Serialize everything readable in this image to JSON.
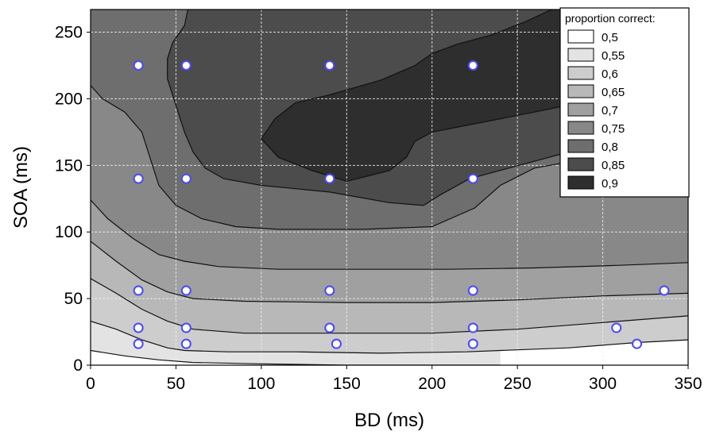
{
  "chart_data": {
    "type": "contour",
    "xlabel": "BD (ms)",
    "ylabel": "SOA (ms)",
    "xlim": [
      0,
      350
    ],
    "ylim": [
      0,
      267
    ],
    "x_ticks": [
      0,
      50,
      100,
      150,
      200,
      250,
      300,
      350
    ],
    "y_ticks": [
      0,
      50,
      100,
      150,
      200,
      250
    ],
    "grid": true,
    "legend": {
      "title": "proportion correct:",
      "position": "top-right",
      "entries": [
        {
          "label": "0,5",
          "color": "#ffffff"
        },
        {
          "label": "0,55",
          "color": "#e3e3e3"
        },
        {
          "label": "0,6",
          "color": "#cdcdcd"
        },
        {
          "label": "0,65",
          "color": "#b8b8b8"
        },
        {
          "label": "0,7",
          "color": "#a0a0a0"
        },
        {
          "label": "0,75",
          "color": "#888888"
        },
        {
          "label": "0,8",
          "color": "#6e6e6e"
        },
        {
          "label": "0,85",
          "color": "#4c4c4c"
        },
        {
          "label": "0,9",
          "color": "#2e2e2e"
        }
      ]
    },
    "contours": [
      {
        "level": 0.55,
        "points": [
          [
            0,
            11
          ],
          [
            20,
            7
          ],
          [
            40,
            4
          ],
          [
            60,
            2
          ],
          [
            100,
            1
          ],
          [
            150,
            0
          ],
          [
            200,
            0
          ],
          [
            240,
            0
          ]
        ]
      },
      {
        "level": 0.6,
        "points": [
          [
            0,
            33
          ],
          [
            15,
            27
          ],
          [
            30,
            19
          ],
          [
            45,
            13
          ],
          [
            55,
            11
          ],
          [
            80,
            10
          ],
          [
            120,
            10
          ],
          [
            170,
            9
          ],
          [
            220,
            10
          ],
          [
            280,
            13
          ],
          [
            320,
            17
          ],
          [
            350,
            19
          ]
        ]
      },
      {
        "level": 0.65,
        "points": [
          [
            0,
            65
          ],
          [
            15,
            54
          ],
          [
            30,
            42
          ],
          [
            45,
            33
          ],
          [
            60,
            27
          ],
          [
            90,
            24
          ],
          [
            150,
            24
          ],
          [
            200,
            24
          ],
          [
            250,
            27
          ],
          [
            300,
            32
          ],
          [
            350,
            37
          ]
        ]
      },
      {
        "level": 0.7,
        "points": [
          [
            0,
            93
          ],
          [
            15,
            78
          ],
          [
            30,
            64
          ],
          [
            45,
            55
          ],
          [
            60,
            50
          ],
          [
            90,
            48
          ],
          [
            150,
            47
          ],
          [
            200,
            47
          ],
          [
            250,
            49
          ],
          [
            300,
            52
          ],
          [
            350,
            54
          ]
        ]
      },
      {
        "level": 0.75,
        "points": [
          [
            0,
            124
          ],
          [
            10,
            110
          ],
          [
            25,
            95
          ],
          [
            40,
            83
          ],
          [
            55,
            78
          ],
          [
            75,
            74
          ],
          [
            110,
            72
          ],
          [
            160,
            72
          ],
          [
            210,
            72
          ],
          [
            260,
            73
          ],
          [
            310,
            75
          ],
          [
            350,
            77
          ]
        ]
      },
      {
        "level": 0.8,
        "points": [
          [
            0,
            210
          ],
          [
            7,
            200
          ],
          [
            20,
            190
          ],
          [
            30,
            175
          ],
          [
            35,
            155
          ],
          [
            40,
            135
          ],
          [
            50,
            120
          ],
          [
            65,
            110
          ],
          [
            85,
            104
          ],
          [
            110,
            102
          ],
          [
            160,
            102
          ],
          [
            200,
            104
          ],
          [
            225,
            118
          ],
          [
            240,
            135
          ],
          [
            260,
            148
          ],
          [
            300,
            157
          ],
          [
            350,
            163
          ]
        ]
      },
      {
        "level": 0.85,
        "points": [
          [
            57,
            267
          ],
          [
            55,
            255
          ],
          [
            48,
            242
          ],
          [
            45,
            230
          ],
          [
            45,
            215
          ],
          [
            50,
            195
          ],
          [
            55,
            175
          ],
          [
            60,
            160
          ],
          [
            67,
            148
          ],
          [
            78,
            140
          ],
          [
            100,
            135
          ],
          [
            140,
            130
          ],
          [
            175,
            122
          ],
          [
            195,
            120
          ],
          [
            205,
            128
          ],
          [
            222,
            140
          ],
          [
            245,
            148
          ],
          [
            280,
            160
          ],
          [
            320,
            170
          ],
          [
            350,
            175
          ]
        ]
      },
      {
        "level": 0.9,
        "points": [
          [
            100,
            170
          ],
          [
            108,
            185
          ],
          [
            120,
            197
          ],
          [
            140,
            203
          ],
          [
            170,
            214
          ],
          [
            190,
            225
          ],
          [
            200,
            234
          ],
          [
            215,
            241
          ],
          [
            235,
            248
          ],
          [
            255,
            258
          ],
          [
            270,
            267
          ]
        ]
      }
    ],
    "contour_tail_09": [
      [
        100,
        170
      ],
      [
        110,
        156
      ],
      [
        130,
        146
      ],
      [
        150,
        138
      ],
      [
        175,
        146
      ],
      [
        185,
        156
      ],
      [
        190,
        168
      ],
      [
        200,
        175
      ],
      [
        220,
        180
      ],
      [
        240,
        185
      ],
      [
        260,
        190
      ],
      [
        275,
        194
      ]
    ],
    "data_points": [
      {
        "x": 28,
        "y": 225
      },
      {
        "x": 56,
        "y": 225
      },
      {
        "x": 140,
        "y": 225
      },
      {
        "x": 224,
        "y": 225
      },
      {
        "x": 28,
        "y": 140
      },
      {
        "x": 56,
        "y": 140
      },
      {
        "x": 140,
        "y": 140
      },
      {
        "x": 224,
        "y": 140
      },
      {
        "x": 28,
        "y": 56
      },
      {
        "x": 56,
        "y": 56
      },
      {
        "x": 140,
        "y": 56
      },
      {
        "x": 224,
        "y": 56
      },
      {
        "x": 336,
        "y": 56
      },
      {
        "x": 28,
        "y": 28
      },
      {
        "x": 56,
        "y": 28
      },
      {
        "x": 140,
        "y": 28
      },
      {
        "x": 224,
        "y": 28
      },
      {
        "x": 308,
        "y": 28
      },
      {
        "x": 28,
        "y": 16
      },
      {
        "x": 56,
        "y": 16
      },
      {
        "x": 144,
        "y": 16
      },
      {
        "x": 224,
        "y": 16
      },
      {
        "x": 320,
        "y": 16
      }
    ],
    "colors": {
      "band_fills": [
        "#ffffff",
        "#e3e3e3",
        "#cdcdcd",
        "#b8b8b8",
        "#a0a0a0",
        "#888888",
        "#6e6e6e",
        "#4c4c4c",
        "#2e2e2e"
      ],
      "contour_line": "#111111",
      "grid": "#f2f2f2",
      "point_ring": "#4848ff"
    }
  }
}
